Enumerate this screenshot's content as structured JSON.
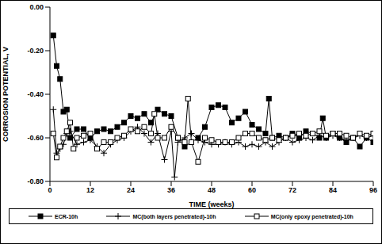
{
  "chart_data": {
    "type": "line",
    "x_label": "TIME (weeks)",
    "y_label": "CORROSION POTENTIAL, V",
    "xlim": [
      0,
      96
    ],
    "xticks": [
      0,
      12,
      24,
      36,
      48,
      60,
      72,
      84,
      96
    ],
    "ylim": [
      -0.8,
      0
    ],
    "yticks": [
      {
        "value": -0.8,
        "label": "-0.80"
      },
      {
        "value": -0.6,
        "label": "-0.60"
      },
      {
        "value": -0.4,
        "label": "-0.40"
      },
      {
        "value": -0.2,
        "label": "-0.20"
      },
      {
        "value": 0,
        "label": "0.00"
      }
    ],
    "grid": false,
    "legend": "bottom",
    "series": [
      {
        "name": "ECR-10h",
        "color": "#000000",
        "marker": "square",
        "x": [
          1,
          2,
          3,
          4,
          5,
          6,
          8,
          10,
          12,
          14,
          16,
          18,
          20,
          22,
          24,
          26,
          28,
          30,
          32,
          34,
          36,
          38,
          40,
          42,
          44,
          46,
          48,
          50,
          52,
          54,
          56,
          58,
          60,
          62,
          64,
          65,
          66,
          68,
          70,
          72,
          74,
          76,
          78,
          80,
          81,
          82,
          84,
          86,
          88,
          90,
          92,
          94,
          96
        ],
        "values": [
          -0.13,
          -0.27,
          -0.33,
          -0.48,
          -0.47,
          -0.6,
          -0.56,
          -0.56,
          -0.6,
          -0.57,
          -0.56,
          -0.57,
          -0.55,
          -0.53,
          -0.5,
          -0.51,
          -0.49,
          -0.53,
          -0.47,
          -0.49,
          -0.5,
          -0.6,
          -0.64,
          -0.62,
          -0.6,
          -0.55,
          -0.46,
          -0.45,
          -0.46,
          -0.53,
          -0.51,
          -0.48,
          -0.54,
          -0.56,
          -0.58,
          -0.42,
          -0.6,
          -0.59,
          -0.6,
          -0.58,
          -0.6,
          -0.57,
          -0.58,
          -0.6,
          -0.51,
          -0.6,
          -0.58,
          -0.6,
          -0.62,
          -0.6,
          -0.64,
          -0.6,
          -0.62
        ]
      },
      {
        "name": "MC(both layers penetrated)-10h",
        "color": "#000000",
        "marker": "plus",
        "x": [
          1,
          2,
          3,
          4,
          5,
          6,
          8,
          10,
          12,
          14,
          16,
          18,
          20,
          22,
          24,
          26,
          28,
          30,
          32,
          34,
          36,
          37,
          38,
          40,
          42,
          44,
          46,
          48,
          50,
          52,
          54,
          56,
          58,
          60,
          62,
          64,
          66,
          68,
          70,
          72,
          74,
          76,
          78,
          80,
          82,
          84,
          86,
          88,
          90,
          92,
          94,
          96
        ],
        "values": [
          -0.47,
          -0.67,
          -0.65,
          -0.63,
          -0.58,
          -0.57,
          -0.63,
          -0.62,
          -0.61,
          -0.64,
          -0.67,
          -0.63,
          -0.61,
          -0.6,
          -0.57,
          -0.55,
          -0.58,
          -0.62,
          -0.58,
          -0.7,
          -0.57,
          -0.78,
          -0.62,
          -0.6,
          -0.58,
          -0.61,
          -0.62,
          -0.63,
          -0.63,
          -0.62,
          -0.63,
          -0.62,
          -0.64,
          -0.63,
          -0.64,
          -0.62,
          -0.64,
          -0.62,
          -0.6,
          -0.62,
          -0.61,
          -0.6,
          -0.61,
          -0.59,
          -0.6,
          -0.59,
          -0.6,
          -0.61,
          -0.6,
          -0.59,
          -0.6,
          -0.59
        ]
      },
      {
        "name": "MC(only epoxy penetrated)-10h",
        "color": "#000000",
        "marker": "open_square",
        "x": [
          1,
          2,
          3,
          4,
          5,
          6,
          7,
          8,
          10,
          12,
          14,
          16,
          18,
          20,
          22,
          24,
          26,
          28,
          30,
          31,
          32,
          34,
          36,
          38,
          40,
          41,
          42,
          44,
          46,
          48,
          50,
          52,
          54,
          56,
          58,
          60,
          62,
          64,
          66,
          68,
          70,
          72,
          74,
          76,
          78,
          80,
          82,
          84,
          86,
          88,
          90,
          92,
          94,
          96
        ],
        "values": [
          -0.58,
          -0.69,
          -0.64,
          -0.6,
          -0.57,
          -0.53,
          -0.65,
          -0.6,
          -0.59,
          -0.58,
          -0.65,
          -0.62,
          -0.62,
          -0.6,
          -0.59,
          -0.56,
          -0.57,
          -0.55,
          -0.58,
          -0.49,
          -0.6,
          -0.6,
          -0.55,
          -0.6,
          -0.62,
          -0.42,
          -0.62,
          -0.71,
          -0.6,
          -0.61,
          -0.62,
          -0.62,
          -0.62,
          -0.6,
          -0.58,
          -0.58,
          -0.6,
          -0.61,
          -0.6,
          -0.61,
          -0.6,
          -0.59,
          -0.58,
          -0.59,
          -0.58,
          -0.57,
          -0.59,
          -0.58,
          -0.58,
          -0.59,
          -0.6,
          -0.58,
          -0.59,
          -0.58
        ]
      }
    ]
  }
}
